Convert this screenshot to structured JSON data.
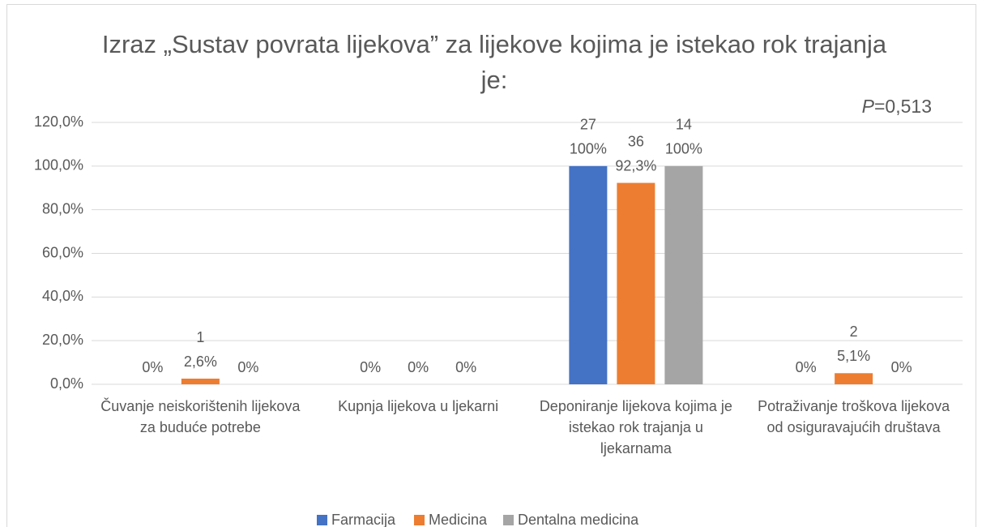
{
  "chart_data": {
    "type": "bar",
    "title": "Izraz „Sustav povrata lijekova” za lijekove kojima je istekao rok trajanja je:",
    "annotation": {
      "symbol": "P",
      "text": "=0,513"
    },
    "categories": [
      "Čuvanje neiskorištenih lijekova za buduće potrebe",
      "Kupnja lijekova u ljekarni",
      "Deponiranje lijekova kojima je istekao rok trajanja u ljekarnama",
      "Potraživanje troškova lijekova od osiguravajućih društava"
    ],
    "series": [
      {
        "name": "Farmacija",
        "color": "#4472c4",
        "values": [
          0,
          0,
          100,
          0
        ],
        "value_labels": [
          "0%",
          "0%",
          "100%",
          "0%"
        ],
        "counts": [
          null,
          null,
          27,
          null
        ]
      },
      {
        "name": "Medicina",
        "color": "#ed7d31",
        "values": [
          2.6,
          0,
          92.3,
          5.1
        ],
        "value_labels": [
          "2,6%",
          "0%",
          "92,3%",
          "5,1%"
        ],
        "counts": [
          1,
          null,
          36,
          2
        ]
      },
      {
        "name": "Dentalna medicina",
        "color": "#a5a5a5",
        "values": [
          0,
          0,
          100,
          0
        ],
        "value_labels": [
          "0%",
          "0%",
          "100%",
          "0%"
        ],
        "counts": [
          null,
          null,
          14,
          null
        ]
      }
    ],
    "ylim": [
      0,
      120
    ],
    "yticks": [
      {
        "value": 0,
        "label": "0,0%"
      },
      {
        "value": 20,
        "label": "20,0%"
      },
      {
        "value": 40,
        "label": "40,0%"
      },
      {
        "value": 60,
        "label": "60,0%"
      },
      {
        "value": 80,
        "label": "80,0%"
      },
      {
        "value": 100,
        "label": "100,0%"
      },
      {
        "value": 120,
        "label": "120,0%"
      }
    ],
    "grid": true,
    "legend": "bottom"
  }
}
